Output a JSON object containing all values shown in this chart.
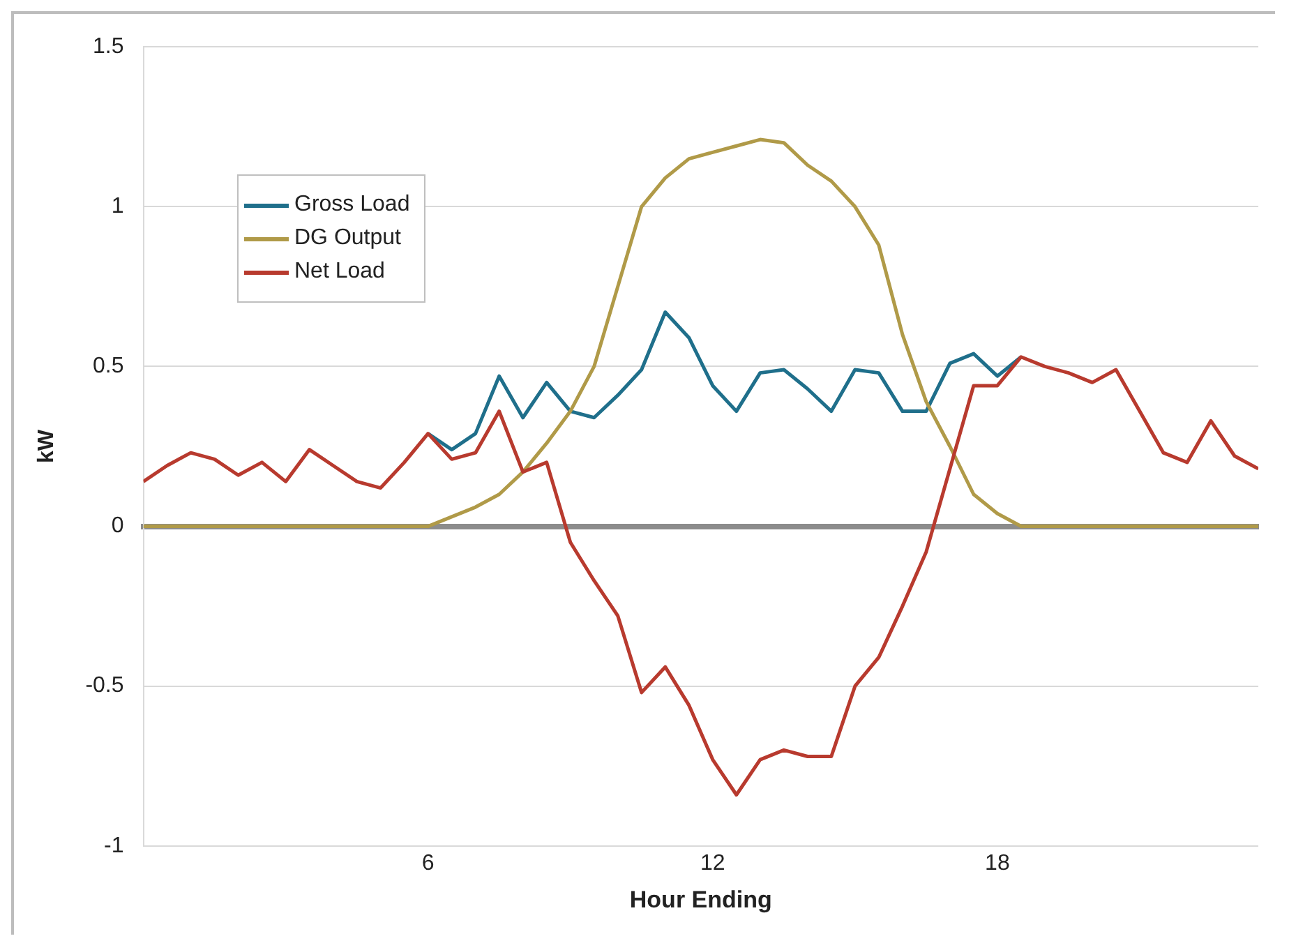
{
  "chart_data": {
    "type": "line",
    "xlabel": "Hour Ending",
    "ylabel": "kW",
    "x": [
      0,
      0.5,
      1,
      1.5,
      2,
      2.5,
      3,
      3.5,
      4,
      4.5,
      5,
      5.5,
      6,
      6.5,
      7,
      7.5,
      8,
      8.5,
      9,
      9.5,
      10,
      10.5,
      11,
      11.5,
      12,
      12.5,
      13,
      13.5,
      14,
      14.5,
      15,
      15.5,
      16,
      16.5,
      17,
      17.5,
      18,
      18.5,
      19,
      19.5,
      20,
      20.5,
      21,
      21.5,
      22,
      22.5,
      23,
      23.5
    ],
    "series": [
      {
        "name": "Gross Load",
        "color": "#1f6f8b",
        "values": [
          null,
          null,
          null,
          null,
          null,
          null,
          null,
          null,
          null,
          null,
          null,
          null,
          0.29,
          0.24,
          0.29,
          0.47,
          0.34,
          0.45,
          0.36,
          0.34,
          0.41,
          0.49,
          0.67,
          0.59,
          0.44,
          0.36,
          0.48,
          0.49,
          0.43,
          0.36,
          0.49,
          0.48,
          0.36,
          0.36,
          0.51,
          0.54,
          0.47,
          0.53,
          null,
          null,
          null,
          null,
          null,
          null,
          null,
          null,
          null,
          null
        ]
      },
      {
        "name": "DG Output",
        "color": "#b09a48",
        "values": [
          0,
          0,
          0,
          0,
          0,
          0,
          0,
          0,
          0,
          0,
          0,
          0,
          0,
          0.03,
          0.06,
          0.1,
          0.17,
          0.26,
          0.36,
          0.5,
          0.75,
          1.0,
          1.09,
          1.15,
          1.17,
          1.19,
          1.21,
          1.2,
          1.13,
          1.08,
          1.0,
          0.88,
          0.6,
          0.39,
          0.25,
          0.1,
          0.04,
          0,
          0,
          0,
          0,
          0,
          0,
          0,
          0,
          0,
          0,
          0
        ]
      },
      {
        "name": "Net Load",
        "color": "#b83a2e",
        "values": [
          0.14,
          0.19,
          0.23,
          0.21,
          0.16,
          0.2,
          0.14,
          0.24,
          0.19,
          0.14,
          0.12,
          0.2,
          0.29,
          0.21,
          0.23,
          0.36,
          0.17,
          0.2,
          -0.05,
          -0.17,
          -0.28,
          -0.52,
          -0.44,
          -0.56,
          -0.73,
          -0.84,
          -0.73,
          -0.7,
          -0.72,
          -0.72,
          -0.5,
          -0.41,
          -0.25,
          -0.08,
          0.18,
          0.44,
          0.44,
          0.53,
          0.5,
          0.48,
          0.45,
          0.49,
          0.36,
          0.23,
          0.2,
          0.33,
          0.22,
          0.18
        ]
      }
    ],
    "xlim": [
      0,
      23.5
    ],
    "xticks": [
      6,
      12,
      18
    ],
    "ylim": [
      -1,
      1.5
    ],
    "yticks": [
      -1,
      -0.5,
      0,
      0.5,
      1,
      1.5
    ],
    "grid": "y",
    "legend": "top left",
    "marker": "none",
    "line_style": "solid"
  }
}
